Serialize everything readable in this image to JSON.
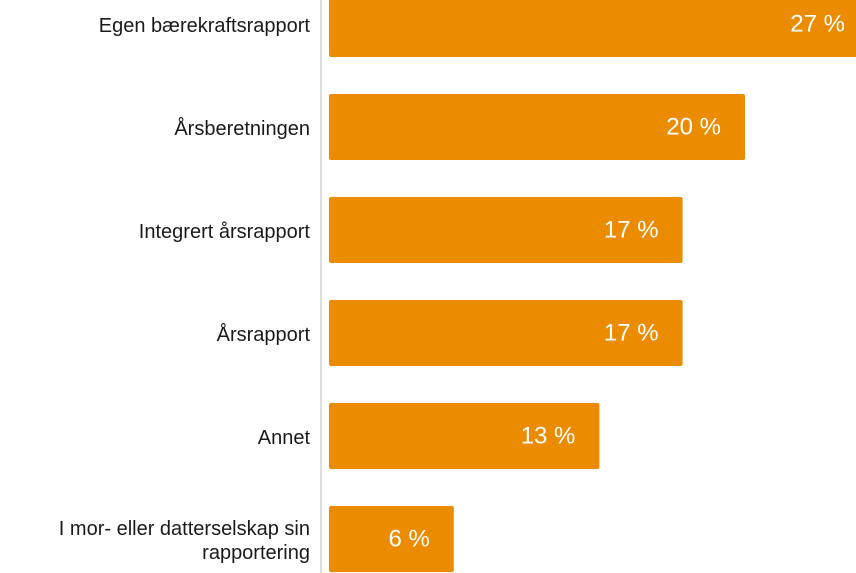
{
  "chart_data": {
    "type": "bar",
    "orientation": "horizontal",
    "categories": [
      "Egen bærekraftsrapport",
      "Årsberetningen",
      "Integrert årsrapport",
      "Årsrapport",
      "Annet",
      "I mor- eller datterselskap sin rapportering"
    ],
    "values": [
      27,
      20,
      17,
      17,
      13,
      6
    ],
    "value_labels": [
      "27 %",
      "20 %",
      "17 %",
      "17 %",
      "13 %",
      "6 %"
    ],
    "color": "#eb8c00"
  }
}
